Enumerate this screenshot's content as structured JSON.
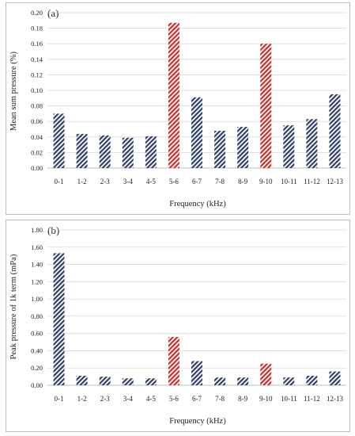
{
  "colors": {
    "navy_bar": "#2e3f66",
    "red_bar": "#cf2b2b",
    "gridline": "#d9d9d9",
    "axis": "#bfbfbf"
  },
  "chart_data": [
    {
      "type": "bar",
      "panel_label": "(a)",
      "xlabel": "Frequency (kHz)",
      "ylabel": "Mean sum pressure (%)",
      "categories": [
        "0-1",
        "1-2",
        "2-3",
        "3-4",
        "4-5",
        "5-6",
        "6-7",
        "7-8",
        "8-9",
        "9-10",
        "10-11",
        "11-12",
        "12-13"
      ],
      "values": [
        0.07,
        0.044,
        0.042,
        0.039,
        0.041,
        0.187,
        0.091,
        0.048,
        0.053,
        0.16,
        0.055,
        0.063,
        0.095
      ],
      "highlighted": [
        false,
        false,
        false,
        false,
        false,
        true,
        false,
        false,
        false,
        true,
        false,
        false,
        false
      ],
      "ylim": [
        0,
        0.2
      ],
      "yticks": [
        "0.00",
        "0.02",
        "0.04",
        "0.06",
        "0.08",
        "0.10",
        "0.12",
        "0.14",
        "0.16",
        "0.18",
        "0.20"
      ],
      "grid": true,
      "bar_fill": "diagonal hatch"
    },
    {
      "type": "bar",
      "panel_label": "(b)",
      "xlabel": "Frequency (kHz)",
      "ylabel": "Peak pressure of 1k term (mPa)",
      "categories": [
        "0-1",
        "1-2",
        "2-3",
        "3-4",
        "4-5",
        "5-6",
        "6-7",
        "7-8",
        "8-9",
        "9-10",
        "10-11",
        "11-12",
        "12-13"
      ],
      "values": [
        1.53,
        0.11,
        0.1,
        0.08,
        0.08,
        0.56,
        0.28,
        0.09,
        0.09,
        0.25,
        0.09,
        0.11,
        0.16
      ],
      "highlighted": [
        false,
        false,
        false,
        false,
        false,
        true,
        false,
        false,
        false,
        true,
        false,
        false,
        false
      ],
      "ylim": [
        0,
        1.8
      ],
      "yticks": [
        "0.00",
        "0.20",
        "0.40",
        "0.60",
        "0.80",
        "1.00",
        "1.20",
        "1.40",
        "1.60",
        "1.80"
      ],
      "grid": true,
      "bar_fill": "diagonal hatch"
    }
  ]
}
